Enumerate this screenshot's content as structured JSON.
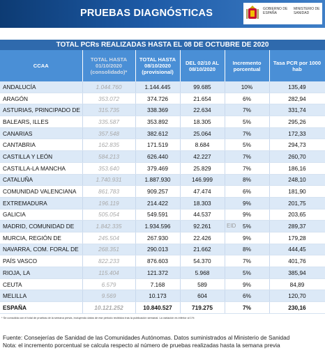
{
  "header": {
    "title": "PRUEBAS DIAGNÓSTICAS",
    "gov_label_1": "GOBIERNO DE ESPAÑA",
    "gov_label_2": "MINISTERIO DE SANIDAD"
  },
  "table": {
    "title": "TOTAL PCRs REALIZADAS HASTA EL 08 DE OCTUBRE DE 2020",
    "columns": [
      "CCAA",
      "TOTAL HASTA 01/10/2020 (consolidado)*",
      "TOTAL HASTA 08/10/2020 (provisional)",
      "DEL 02/10 AL 08/10/2020",
      "Incremento porcentual",
      "Tasa PCR por 1000 hab"
    ],
    "rows": [
      [
        "ANDALUCÍA",
        "1.044.760",
        "1.144.445",
        "99.685",
        "10%",
        "135,49"
      ],
      [
        "ARAGÓN",
        "353.072",
        "374.726",
        "21.654",
        "6%",
        "282,94"
      ],
      [
        "ASTURIAS, PRINCIPADO DE",
        "315.735",
        "338.369",
        "22.634",
        "7%",
        "331,74"
      ],
      [
        "BALEARS, ILLES",
        "335.587",
        "353.892",
        "18.305",
        "5%",
        "295,26"
      ],
      [
        "CANARIAS",
        "357.548",
        "382.612",
        "25.064",
        "7%",
        "172,33"
      ],
      [
        "CANTABRIA",
        "162.835",
        "171.519",
        "8.684",
        "5%",
        "294,73"
      ],
      [
        "CASTILLA Y LEÓN",
        "584.213",
        "626.440",
        "42.227",
        "7%",
        "260,70"
      ],
      [
        "CASTILLA-LA MANCHA",
        "353.640",
        "379.469",
        "25.829",
        "7%",
        "186,16"
      ],
      [
        "CATALUÑA",
        "1.740.931",
        "1.887.930",
        "146.999",
        "8%",
        "248,10"
      ],
      [
        "COMUNIDAD VALENCIANA",
        "861.783",
        "909.257",
        "47.474",
        "6%",
        "181,90"
      ],
      [
        "EXTREMADURA",
        "196.119",
        "214.422",
        "18.303",
        "9%",
        "201,75"
      ],
      [
        "GALICIA",
        "505.054",
        "549.591",
        "44.537",
        "9%",
        "203,65"
      ],
      [
        "MADRID, COMUNIDAD DE",
        "1.842.335",
        "1.934.596",
        "92.261",
        "5%",
        "289,37"
      ],
      [
        "MURCIA, REGIÓN DE",
        "245.504",
        "267.930",
        "22.426",
        "9%",
        "179,28"
      ],
      [
        "NAVARRA, COM. FORAL DE",
        "268.351",
        "290.013",
        "21.662",
        "8%",
        "444,45"
      ],
      [
        "PAÍS VASCO",
        "822.233",
        "876.603",
        "54.370",
        "7%",
        "401,76"
      ],
      [
        "RIOJA, LA",
        "115.404",
        "121.372",
        "5.968",
        "5%",
        "385,94"
      ],
      [
        "CEUTA",
        "6.579",
        "7.168",
        "589",
        "9%",
        "84,89"
      ],
      [
        "MELILLA",
        "9.569",
        "10.173",
        "604",
        "6%",
        "120,70"
      ]
    ],
    "total": [
      "ESPAÑA",
      "10.121.252",
      "10.840.527",
      "719.275",
      "7%",
      "230,16"
    ]
  },
  "footnote": "* Se consolida con el total de pruebas de la semana previa, incluyendo datos de ese periodo recibidos tras la publicación semanal. La variación es inferior al 1%",
  "source_lines": [
    "Fuente: Consejerías de Sanidad de las Comunidades Autónomas. Datos suministrados al Ministerio de Sanidad",
    "Nota: el incremento porcentual se calcula respecto al número de pruebas realizadas hasta la semana previa"
  ],
  "watermark": "EID"
}
